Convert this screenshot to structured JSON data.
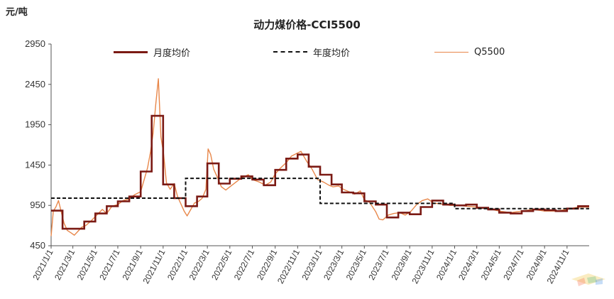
{
  "chart_data": {
    "type": "line",
    "title": "动力煤价格-CCI5500",
    "ylabel": "元/吨",
    "xlabel": "",
    "ylim": [
      450,
      2950
    ],
    "yticks": [
      450,
      950,
      1450,
      1950,
      2450,
      2950
    ],
    "xlim": [
      "2021-01-01",
      "2024-12-31"
    ],
    "grid": false,
    "legend_position": "top",
    "xtick_labels": [
      "2021/1/1",
      "2021/3/1",
      "2021/5/1",
      "2021/7/1",
      "2021/9/1",
      "2021/11/1",
      "2022/1/1",
      "2022/3/1",
      "2022/5/1",
      "2022/7/1",
      "2022/9/1",
      "2022/11/1",
      "2023/1/1",
      "2023/3/1",
      "2023/5/1",
      "2023/7/1",
      "2023/9/1",
      "2023/11/1",
      "2024/1/1",
      "2024/3/1",
      "2024/5/1",
      "2024/7/1",
      "2024/9/1",
      "2024/11/1"
    ],
    "series": [
      {
        "name": "月度均价",
        "color": "#7b1a14",
        "style": "step-solid-bold",
        "points": [
          [
            "2021-01-01",
            885
          ],
          [
            "2021-02-01",
            660
          ],
          [
            "2021-04-01",
            750
          ],
          [
            "2021-05-01",
            850
          ],
          [
            "2021-06-01",
            940
          ],
          [
            "2021-07-01",
            1000
          ],
          [
            "2021-08-01",
            1060
          ],
          [
            "2021-09-01",
            1370
          ],
          [
            "2021-10-01",
            2060
          ],
          [
            "2021-11-01",
            1210
          ],
          [
            "2021-12-01",
            1040
          ],
          [
            "2022-01-01",
            940
          ],
          [
            "2022-02-01",
            1060
          ],
          [
            "2022-03-01",
            1470
          ],
          [
            "2022-04-01",
            1220
          ],
          [
            "2022-05-01",
            1280
          ],
          [
            "2022-06-01",
            1310
          ],
          [
            "2022-07-01",
            1270
          ],
          [
            "2022-08-01",
            1200
          ],
          [
            "2022-09-01",
            1390
          ],
          [
            "2022-10-01",
            1530
          ],
          [
            "2022-11-01",
            1580
          ],
          [
            "2022-12-01",
            1430
          ],
          [
            "2023-01-01",
            1330
          ],
          [
            "2023-02-01",
            1210
          ],
          [
            "2023-03-01",
            1110
          ],
          [
            "2023-04-01",
            1100
          ],
          [
            "2023-05-01",
            1000
          ],
          [
            "2023-06-01",
            960
          ],
          [
            "2023-07-01",
            800
          ],
          [
            "2023-08-01",
            860
          ],
          [
            "2023-09-01",
            840
          ],
          [
            "2023-10-01",
            930
          ],
          [
            "2023-11-01",
            1010
          ],
          [
            "2023-12-01",
            960
          ],
          [
            "2024-01-01",
            950
          ],
          [
            "2024-02-01",
            960
          ],
          [
            "2024-03-01",
            920
          ],
          [
            "2024-04-01",
            900
          ],
          [
            "2024-05-01",
            860
          ],
          [
            "2024-06-01",
            850
          ],
          [
            "2024-07-01",
            880
          ],
          [
            "2024-08-01",
            900
          ],
          [
            "2024-09-01",
            890
          ],
          [
            "2024-10-01",
            880
          ],
          [
            "2024-11-01",
            910
          ],
          [
            "2024-12-01",
            940
          ],
          [
            "2024-12-31",
            940
          ]
        ]
      },
      {
        "name": "年度均价",
        "color": "#111111",
        "style": "step-dashed",
        "points": [
          [
            "2021-01-01",
            1040
          ],
          [
            "2022-01-01",
            1040
          ],
          [
            "2022-01-01",
            1285
          ],
          [
            "2023-01-01",
            1285
          ],
          [
            "2023-01-01",
            975
          ],
          [
            "2024-01-01",
            975
          ],
          [
            "2024-01-01",
            910
          ],
          [
            "2024-12-31",
            910
          ]
        ]
      },
      {
        "name": "Q5500",
        "color": "#e8874a",
        "style": "line",
        "points": [
          [
            "2021-01-01",
            570
          ],
          [
            "2021-01-07",
            880
          ],
          [
            "2021-01-14",
            930
          ],
          [
            "2021-01-21",
            1010
          ],
          [
            "2021-01-28",
            880
          ],
          [
            "2021-02-05",
            730
          ],
          [
            "2021-02-14",
            640
          ],
          [
            "2021-02-24",
            610
          ],
          [
            "2021-03-05",
            580
          ],
          [
            "2021-03-15",
            630
          ],
          [
            "2021-03-25",
            680
          ],
          [
            "2021-04-05",
            700
          ],
          [
            "2021-04-20",
            760
          ],
          [
            "2021-05-05",
            830
          ],
          [
            "2021-05-20",
            900
          ],
          [
            "2021-06-01",
            850
          ],
          [
            "2021-06-15",
            940
          ],
          [
            "2021-07-01",
            960
          ],
          [
            "2021-07-15",
            1010
          ],
          [
            "2021-08-01",
            1030
          ],
          [
            "2021-08-15",
            1080
          ],
          [
            "2021-09-01",
            1120
          ],
          [
            "2021-09-10",
            1260
          ],
          [
            "2021-09-20",
            1420
          ],
          [
            "2021-09-28",
            1620
          ],
          [
            "2021-10-05",
            1850
          ],
          [
            "2021-10-12",
            2200
          ],
          [
            "2021-10-19",
            2520
          ],
          [
            "2021-10-26",
            1800
          ],
          [
            "2021-11-02",
            1600
          ],
          [
            "2021-11-10",
            1230
          ],
          [
            "2021-11-20",
            1150
          ],
          [
            "2021-12-01",
            1220
          ],
          [
            "2021-12-10",
            1060
          ],
          [
            "2021-12-20",
            960
          ],
          [
            "2021-12-28",
            880
          ],
          [
            "2022-01-05",
            820
          ],
          [
            "2022-01-15",
            900
          ],
          [
            "2022-01-25",
            980
          ],
          [
            "2022-02-05",
            1000
          ],
          [
            "2022-02-15",
            1040
          ],
          [
            "2022-02-25",
            1150
          ],
          [
            "2022-03-03",
            1650
          ],
          [
            "2022-03-10",
            1580
          ],
          [
            "2022-03-18",
            1400
          ],
          [
            "2022-03-28",
            1300
          ],
          [
            "2022-04-08",
            1180
          ],
          [
            "2022-04-20",
            1140
          ],
          [
            "2022-05-01",
            1180
          ],
          [
            "2022-05-15",
            1230
          ],
          [
            "2022-06-01",
            1290
          ],
          [
            "2022-06-20",
            1330
          ],
          [
            "2022-07-01",
            1270
          ],
          [
            "2022-07-20",
            1240
          ],
          [
            "2022-08-05",
            1200
          ],
          [
            "2022-08-20",
            1240
          ],
          [
            "2022-09-01",
            1340
          ],
          [
            "2022-09-15",
            1410
          ],
          [
            "2022-10-01",
            1480
          ],
          [
            "2022-10-15",
            1560
          ],
          [
            "2022-11-01",
            1600
          ],
          [
            "2022-11-10",
            1620
          ],
          [
            "2022-11-25",
            1500
          ],
          [
            "2022-12-10",
            1400
          ],
          [
            "2022-12-25",
            1270
          ],
          [
            "2023-01-10",
            1240
          ],
          [
            "2023-01-25",
            1200
          ],
          [
            "2023-02-05",
            1180
          ],
          [
            "2023-02-20",
            1190
          ],
          [
            "2023-03-05",
            1150
          ],
          [
            "2023-03-20",
            1120
          ],
          [
            "2023-04-05",
            1090
          ],
          [
            "2023-04-20",
            1130
          ],
          [
            "2023-05-01",
            1020
          ],
          [
            "2023-05-15",
            990
          ],
          [
            "2023-06-01",
            870
          ],
          [
            "2023-06-10",
            780
          ],
          [
            "2023-06-20",
            770
          ],
          [
            "2023-07-05",
            830
          ],
          [
            "2023-07-20",
            850
          ],
          [
            "2023-08-05",
            860
          ],
          [
            "2023-08-20",
            830
          ],
          [
            "2023-09-05",
            880
          ],
          [
            "2023-09-20",
            960
          ],
          [
            "2023-10-05",
            1010
          ],
          [
            "2023-10-20",
            1030
          ],
          [
            "2023-11-05",
            980
          ],
          [
            "2023-11-20",
            970
          ],
          [
            "2023-12-05",
            960
          ],
          [
            "2023-12-20",
            950
          ],
          [
            "2024-01-10",
            950
          ],
          [
            "2024-02-01",
            940
          ],
          [
            "2024-03-01",
            930
          ],
          [
            "2024-04-01",
            910
          ],
          [
            "2024-05-01",
            880
          ],
          [
            "2024-06-01",
            860
          ],
          [
            "2024-07-01",
            880
          ],
          [
            "2024-08-01",
            900
          ],
          [
            "2024-09-01",
            880
          ],
          [
            "2024-10-01",
            880
          ],
          [
            "2024-11-01",
            900
          ],
          [
            "2024-12-01",
            930
          ],
          [
            "2024-12-31",
            930
          ]
        ]
      }
    ]
  }
}
